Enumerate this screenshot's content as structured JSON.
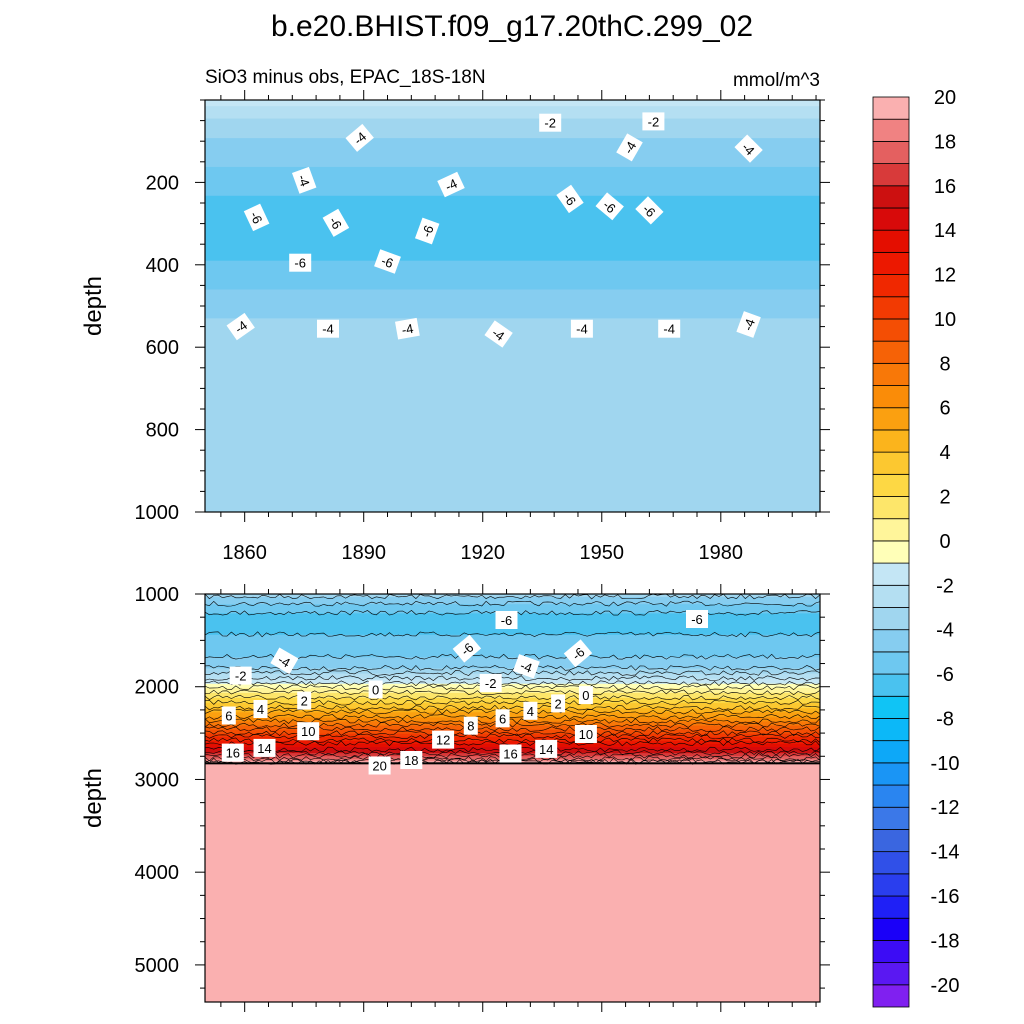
{
  "chart_data": [
    {
      "type": "contour",
      "panel": "top",
      "title": "b.e20.BHIST.f09_g17.20thC.299_02",
      "subtitle_left": "SiO3 minus obs, EPAC_18S-18N",
      "subtitle_right": "mmol/m^3",
      "xlabel": "",
      "ylabel": "depth",
      "xlim": [
        1850,
        2005
      ],
      "ylim": [
        0,
        1000
      ],
      "y_reversed": true,
      "x_ticks": [
        1860,
        1890,
        1920,
        1950,
        1980
      ],
      "x_tick_labels": [
        "1860",
        "1890",
        "1920",
        "1950",
        "1980"
      ],
      "y_ticks": [
        200,
        400,
        600,
        800,
        1000
      ],
      "y_tick_labels": [
        "200",
        "400",
        "600",
        "800",
        "1000"
      ],
      "depth_profile": [
        {
          "depth": 0,
          "value": -1.5
        },
        {
          "depth": 25,
          "value": -2.5
        },
        {
          "depth": 60,
          "value": -3.5
        },
        {
          "depth": 120,
          "value": -4.5
        },
        {
          "depth": 200,
          "value": -5.5
        },
        {
          "depth": 260,
          "value": -6.5
        },
        {
          "depth": 360,
          "value": -6.5
        },
        {
          "depth": 420,
          "value": -5.5
        },
        {
          "depth": 500,
          "value": -4.5
        },
        {
          "depth": 560,
          "value": -3.5
        },
        {
          "depth": 950,
          "value": -3.5
        },
        {
          "depth": 1000,
          "value": -4.0
        }
      ],
      "contour_labels": [
        {
          "text": "-4",
          "x": 1889,
          "y": 92,
          "angle": -40
        },
        {
          "text": "-2",
          "x": 1937,
          "y": 55,
          "angle": 0
        },
        {
          "text": "-4",
          "x": 1957,
          "y": 115,
          "angle": -60
        },
        {
          "text": "-4",
          "x": 1912,
          "y": 205,
          "angle": -25
        },
        {
          "text": "-2",
          "x": 1963,
          "y": 52,
          "angle": 0
        },
        {
          "text": "-4",
          "x": 1987,
          "y": 118,
          "angle": 45
        },
        {
          "text": "-4",
          "x": 1875,
          "y": 195,
          "angle": 70
        },
        {
          "text": "-6",
          "x": 1863,
          "y": 285,
          "angle": 65
        },
        {
          "text": "-6",
          "x": 1883,
          "y": 298,
          "angle": 60
        },
        {
          "text": "-6",
          "x": 1906,
          "y": 318,
          "angle": -70
        },
        {
          "text": "-6",
          "x": 1942,
          "y": 240,
          "angle": 55
        },
        {
          "text": "-6",
          "x": 1952,
          "y": 258,
          "angle": 40
        },
        {
          "text": "-6",
          "x": 1962,
          "y": 268,
          "angle": 45
        },
        {
          "text": "-6",
          "x": 1874,
          "y": 395,
          "angle": 0
        },
        {
          "text": "-6",
          "x": 1896,
          "y": 392,
          "angle": 20
        },
        {
          "text": "-4",
          "x": 1859,
          "y": 550,
          "angle": -35
        },
        {
          "text": "-4",
          "x": 1881,
          "y": 555,
          "angle": 0
        },
        {
          "text": "-4",
          "x": 1901,
          "y": 555,
          "angle": -10
        },
        {
          "text": "-4",
          "x": 1924,
          "y": 568,
          "angle": 35
        },
        {
          "text": "-4",
          "x": 1945,
          "y": 555,
          "angle": 0
        },
        {
          "text": "-4",
          "x": 1967,
          "y": 555,
          "angle": 0
        },
        {
          "text": "-4",
          "x": 1987,
          "y": 545,
          "angle": -70
        }
      ]
    },
    {
      "type": "contour",
      "panel": "bottom",
      "xlabel": "",
      "ylabel": "depth",
      "xlim": [
        1850,
        2005
      ],
      "ylim": [
        1000,
        5400
      ],
      "y_reversed": true,
      "y_ticks": [
        1000,
        2000,
        3000,
        4000,
        5000
      ],
      "y_tick_labels": [
        "1000",
        "2000",
        "3000",
        "4000",
        "5000"
      ],
      "depth_profile": [
        {
          "depth": 1000,
          "value": -3.5
        },
        {
          "depth": 1060,
          "value": -4.5
        },
        {
          "depth": 1150,
          "value": -5.5
        },
        {
          "depth": 1250,
          "value": -6.5
        },
        {
          "depth": 1620,
          "value": -5.5
        },
        {
          "depth": 1800,
          "value": -4.0
        },
        {
          "depth": 1960,
          "value": -1.0
        },
        {
          "depth": 2030,
          "value": 0.5
        },
        {
          "depth": 2150,
          "value": 2.5
        },
        {
          "depth": 2300,
          "value": 5.5
        },
        {
          "depth": 2500,
          "value": 10.0
        },
        {
          "depth": 2650,
          "value": 14.0
        },
        {
          "depth": 2780,
          "value": 18.0
        },
        {
          "depth": 2830,
          "value": 21.0
        },
        {
          "depth": 5400,
          "value": 21.0
        }
      ],
      "contour_labels": [
        {
          "text": "-6",
          "x": 1926,
          "y": 1280,
          "angle": 0
        },
        {
          "text": "-6",
          "x": 1974,
          "y": 1270,
          "angle": 0
        },
        {
          "text": "-6",
          "x": 1916,
          "y": 1590,
          "angle": -40
        },
        {
          "text": "-6",
          "x": 1944,
          "y": 1640,
          "angle": -40
        },
        {
          "text": "-4",
          "x": 1870,
          "y": 1720,
          "angle": 30
        },
        {
          "text": "-4",
          "x": 1931,
          "y": 1780,
          "angle": 20
        },
        {
          "text": "-2",
          "x": 1859,
          "y": 1880,
          "angle": 0
        },
        {
          "text": "-2",
          "x": 1922,
          "y": 1960,
          "angle": 0
        },
        {
          "text": "0",
          "x": 1893,
          "y": 2030,
          "angle": 0
        },
        {
          "text": "0",
          "x": 1946,
          "y": 2090,
          "angle": 0
        },
        {
          "text": "2",
          "x": 1875,
          "y": 2150,
          "angle": 0
        },
        {
          "text": "2",
          "x": 1939,
          "y": 2180,
          "angle": 0
        },
        {
          "text": "4",
          "x": 1864,
          "y": 2240,
          "angle": 0
        },
        {
          "text": "4",
          "x": 1932,
          "y": 2260,
          "angle": 0
        },
        {
          "text": "6",
          "x": 1856,
          "y": 2310,
          "angle": 0
        },
        {
          "text": "6",
          "x": 1925,
          "y": 2340,
          "angle": 0
        },
        {
          "text": "8",
          "x": 1917,
          "y": 2420,
          "angle": 0
        },
        {
          "text": "10",
          "x": 1876,
          "y": 2480,
          "angle": 0
        },
        {
          "text": "10",
          "x": 1946,
          "y": 2510,
          "angle": 0
        },
        {
          "text": "12",
          "x": 1910,
          "y": 2570,
          "angle": 0
        },
        {
          "text": "14",
          "x": 1865,
          "y": 2660,
          "angle": 0
        },
        {
          "text": "14",
          "x": 1936,
          "y": 2670,
          "angle": 0
        },
        {
          "text": "16",
          "x": 1857,
          "y": 2710,
          "angle": 0
        },
        {
          "text": "16",
          "x": 1927,
          "y": 2720,
          "angle": 0
        },
        {
          "text": "18",
          "x": 1902,
          "y": 2790,
          "angle": 0
        },
        {
          "text": "20",
          "x": 1894,
          "y": 2850,
          "angle": 0
        }
      ]
    }
  ],
  "colorbar": {
    "levels": [
      -21,
      -20,
      -19,
      -18,
      -17,
      -16,
      -15,
      -14,
      -13,
      -12,
      -11,
      -10,
      -9,
      -8,
      -7,
      -6,
      -5,
      -4,
      -3,
      -2,
      -1,
      0,
      1,
      2,
      3,
      4,
      5,
      6,
      7,
      8,
      9,
      10,
      11,
      12,
      13,
      14,
      15,
      16,
      17,
      18,
      19,
      20,
      21
    ],
    "colors": [
      "#8020f0",
      "#5a18f2",
      "#3c0cf5",
      "#1a00f8",
      "#1f20f6",
      "#2a3eee",
      "#3050e8",
      "#3a66e0",
      "#3b78e8",
      "#2a85f0",
      "#1a95f5",
      "#0da8f8",
      "#0cb8f8",
      "#10c4f5",
      "#4ac2ef",
      "#6ec8f0",
      "#86cdf0",
      "#a0d6ef",
      "#b4dff2",
      "#c4e6f5",
      "#ffffb8",
      "#fff59a",
      "#fde66a",
      "#fdd844",
      "#fcc830",
      "#fbb41c",
      "#fba010",
      "#fa8c08",
      "#f87808",
      "#f66206",
      "#f44e04",
      "#f23a02",
      "#f02800",
      "#ec1800",
      "#e40e00",
      "#d80a0a",
      "#cc1010",
      "#d83a3a",
      "#e46060",
      "#f08282",
      "#fab0b0"
    ],
    "tick_values": [
      -20,
      -18,
      -16,
      -14,
      -12,
      -10,
      -8,
      -6,
      -4,
      -2,
      0,
      2,
      4,
      6,
      8,
      10,
      12,
      14,
      16,
      18,
      20
    ],
    "tick_labels": [
      "-20",
      "-18",
      "-16",
      "-14",
      "-12",
      "-10",
      "-8",
      "-6",
      "-4",
      "-2",
      "0",
      "2",
      "4",
      "6",
      "8",
      "10",
      "12",
      "14",
      "16",
      "18",
      "20"
    ]
  }
}
